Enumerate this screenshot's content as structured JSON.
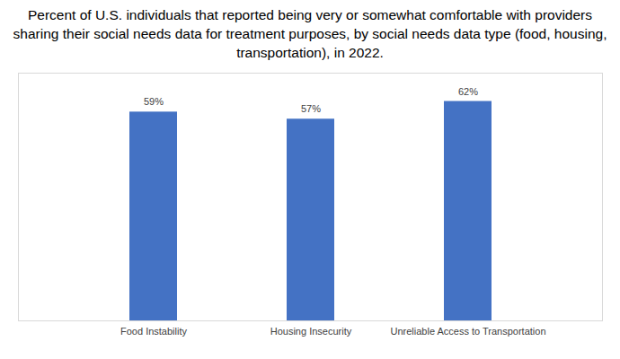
{
  "chart_data": {
    "type": "bar",
    "title": "Percent of U.S. individuals that reported being very or somewhat comfortable with providers sharing their social needs data for treatment purposes, by social needs data type (food, housing, transportation), in 2022.",
    "categories": [
      "Food Instability",
      "Housing Insecurity",
      "Unreliable Access to Transportation"
    ],
    "values": [
      59,
      57,
      62
    ],
    "value_labels": [
      "59%",
      "57%",
      "62%"
    ],
    "color": "#4472c4",
    "ylim": [
      0,
      70
    ],
    "data_labels": true,
    "tick_labels": "x",
    "grid": false
  }
}
